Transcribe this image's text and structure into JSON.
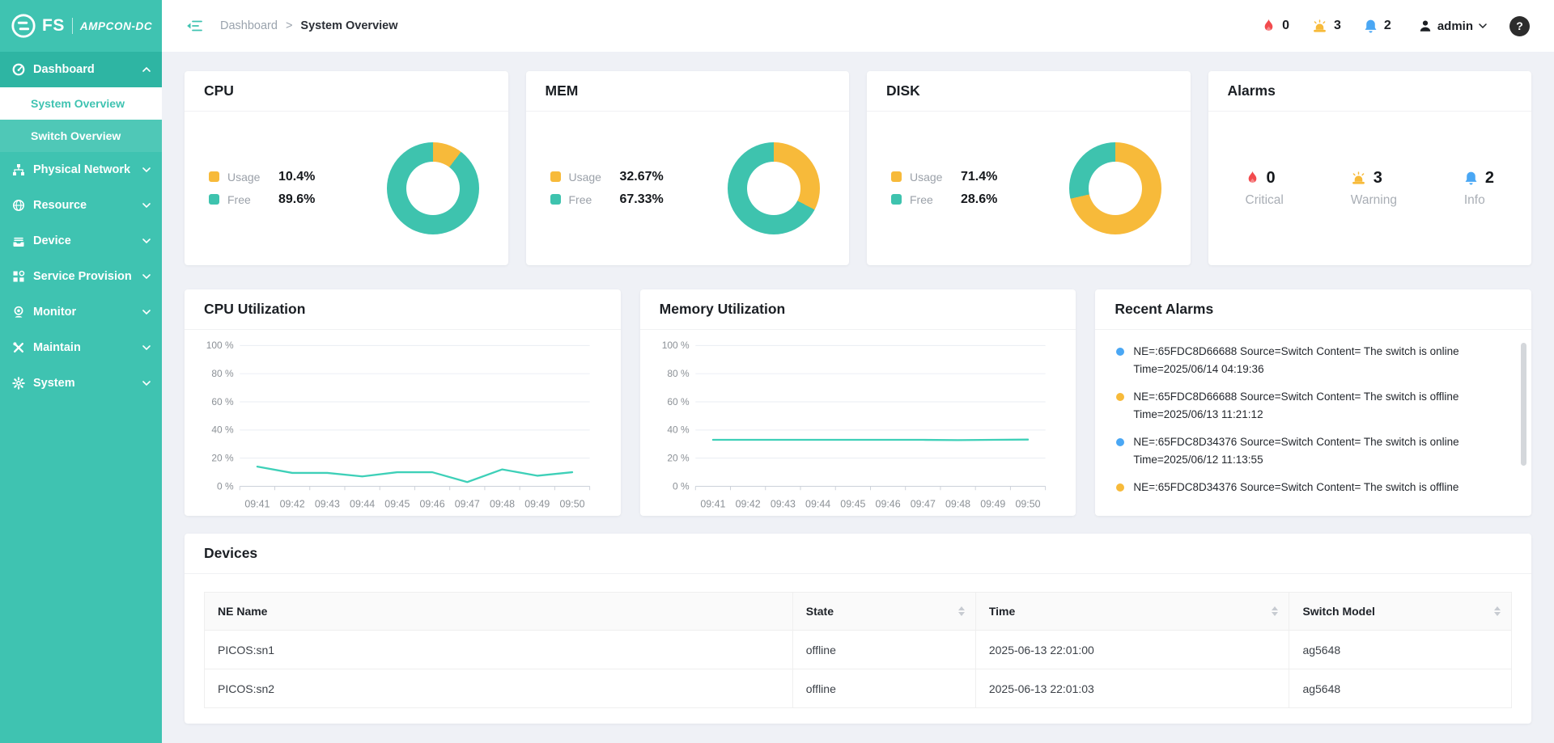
{
  "brand": {
    "logo_text": "FS",
    "product": "AMPCON-DC"
  },
  "header": {
    "breadcrumb": {
      "parent": "Dashboard",
      "separator": ">",
      "current": "System Overview"
    },
    "notifications": [
      {
        "name": "critical",
        "count": "0"
      },
      {
        "name": "warning",
        "count": "3"
      },
      {
        "name": "info",
        "count": "2"
      }
    ],
    "user": {
      "name": "admin"
    },
    "help_label": "?"
  },
  "colors": {
    "sidebar_teal": "#3fc3b1",
    "usage_yellow": "#f7ba3a",
    "free_teal": "#3ec3ae",
    "line_teal": "#3ed0b8",
    "critical_red": "#f24b4e",
    "info_blue": "#4aa7f4"
  },
  "sidebar": {
    "items": [
      {
        "label": "Dashboard",
        "children": [
          {
            "label": "System Overview"
          },
          {
            "label": "Switch Overview"
          }
        ]
      },
      {
        "label": "Physical Network"
      },
      {
        "label": "Resource"
      },
      {
        "label": "Device"
      },
      {
        "label": "Service Provision"
      },
      {
        "label": "Monitor"
      },
      {
        "label": "Maintain"
      },
      {
        "label": "System"
      }
    ]
  },
  "donut_cards": [
    {
      "title": "CPU",
      "usage_label": "Usage",
      "usage_value": "10.4%",
      "free_label": "Free",
      "free_value": "89.6%",
      "usage_pct": 10.4
    },
    {
      "title": "MEM",
      "usage_label": "Usage",
      "usage_value": "32.67%",
      "free_label": "Free",
      "free_value": "67.33%",
      "usage_pct": 32.67
    },
    {
      "title": "DISK",
      "usage_label": "Usage",
      "usage_value": "71.4%",
      "free_label": "Free",
      "free_value": "28.6%",
      "usage_pct": 71.4
    }
  ],
  "alarms_card": {
    "title": "Alarms",
    "stats": [
      {
        "label": "Critical",
        "count": "0",
        "color": "critical_red"
      },
      {
        "label": "Warning",
        "count": "3",
        "color": "usage_yellow"
      },
      {
        "label": "Info",
        "count": "2",
        "color": "info_blue"
      }
    ]
  },
  "chart_data": [
    {
      "type": "line",
      "title": "CPU Utilization",
      "x": [
        "09:41",
        "09:42",
        "09:43",
        "09:44",
        "09:45",
        "09:46",
        "09:47",
        "09:48",
        "09:49",
        "09:50"
      ],
      "values": [
        14,
        9.5,
        9.5,
        7,
        10,
        10,
        3,
        12,
        7.5,
        10
      ],
      "ylim": [
        0,
        100
      ],
      "yticks": [
        0,
        20,
        40,
        60,
        80,
        100
      ],
      "ytick_suffix": " %",
      "xlabel": "",
      "ylabel": "",
      "grid": true,
      "legend": "none",
      "line_color": "#3ed0b8"
    },
    {
      "type": "line",
      "title": "Memory Utilization",
      "x": [
        "09:41",
        "09:42",
        "09:43",
        "09:44",
        "09:45",
        "09:46",
        "09:47",
        "09:48",
        "09:49",
        "09:50"
      ],
      "values": [
        33,
        33,
        33,
        33,
        33,
        33,
        33,
        32.8,
        33,
        33.2
      ],
      "ylim": [
        0,
        100
      ],
      "yticks": [
        0,
        20,
        40,
        60,
        80,
        100
      ],
      "ytick_suffix": " %",
      "xlabel": "",
      "ylabel": "",
      "grid": true,
      "legend": "none",
      "line_color": "#3ed0b8"
    },
    {
      "type": "donut",
      "title": "CPU",
      "labels": [
        "Usage",
        "Free"
      ],
      "values": [
        10.4,
        89.6
      ],
      "colors": [
        "#f7ba3a",
        "#3ec3ae"
      ]
    },
    {
      "type": "donut",
      "title": "MEM",
      "labels": [
        "Usage",
        "Free"
      ],
      "values": [
        32.67,
        67.33
      ],
      "colors": [
        "#f7ba3a",
        "#3ec3ae"
      ]
    },
    {
      "type": "donut",
      "title": "DISK",
      "labels": [
        "Usage",
        "Free"
      ],
      "values": [
        71.4,
        28.6
      ],
      "colors": [
        "#f7ba3a",
        "#3ec3ae"
      ]
    }
  ],
  "recent_alarms": {
    "title": "Recent Alarms",
    "items": [
      {
        "severity": "info",
        "text": "NE=:65FDC8D66688 Source=Switch Content= The switch is online",
        "time": "Time=2025/06/14 04:19:36"
      },
      {
        "severity": "warning",
        "text": "NE=:65FDC8D66688 Source=Switch Content= The switch is offline",
        "time": "Time=2025/06/13 11:21:12"
      },
      {
        "severity": "info",
        "text": "NE=:65FDC8D34376 Source=Switch Content= The switch is online",
        "time": "Time=2025/06/12 11:13:55"
      },
      {
        "severity": "warning",
        "text": "NE=:65FDC8D34376 Source=Switch Content= The switch is offline",
        "time": ""
      }
    ]
  },
  "devices": {
    "title": "Devices",
    "columns": [
      {
        "label": "NE Name",
        "sortable": false
      },
      {
        "label": "State",
        "sortable": true
      },
      {
        "label": "Time",
        "sortable": true
      },
      {
        "label": "Switch Model",
        "sortable": true
      }
    ],
    "rows": [
      {
        "ne_name": "PICOS:sn1",
        "state": "offline",
        "time": "2025-06-13 22:01:00",
        "model": "ag5648"
      },
      {
        "ne_name": "PICOS:sn2",
        "state": "offline",
        "time": "2025-06-13 22:01:03",
        "model": "ag5648"
      }
    ]
  }
}
